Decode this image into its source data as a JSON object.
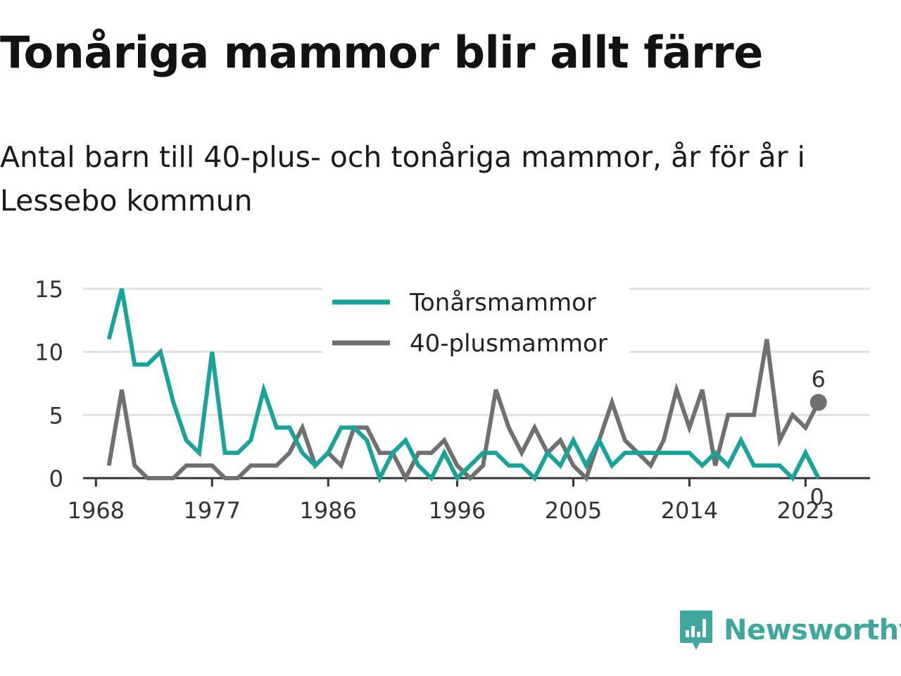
{
  "title": "Tonåriga mammor blir allt färre",
  "subtitle": "Antal barn till 40-plus- och tonåriga mammor, år för år i Lessebo kommun",
  "brand": {
    "name": "Newsworthy"
  },
  "colors": {
    "teal": "#1aa398",
    "gray": "#707070",
    "grid": "#e2e2e2",
    "axis": "#333333"
  },
  "chart_data": {
    "type": "line",
    "x": [
      1969,
      1970,
      1971,
      1972,
      1973,
      1974,
      1975,
      1976,
      1977,
      1978,
      1979,
      1980,
      1981,
      1982,
      1983,
      1984,
      1985,
      1986,
      1987,
      1988,
      1989,
      1990,
      1991,
      1992,
      1993,
      1994,
      1995,
      1996,
      1997,
      1998,
      1999,
      2000,
      2001,
      2002,
      2003,
      2004,
      2005,
      2006,
      2007,
      2008,
      2009,
      2010,
      2011,
      2012,
      2013,
      2014,
      2015,
      2016,
      2017,
      2018,
      2019,
      2020,
      2021,
      2022,
      2023,
      2024
    ],
    "series": [
      {
        "name": "Tonårsmammor",
        "color": "#1aa398",
        "values": [
          11,
          15,
          9,
          9,
          10,
          6,
          3,
          2,
          10,
          2,
          2,
          3,
          7,
          4,
          4,
          2,
          1,
          2,
          4,
          4,
          3,
          0,
          2,
          3,
          1,
          0,
          2,
          0,
          1,
          2,
          2,
          1,
          1,
          0,
          2,
          1,
          3,
          1,
          3,
          1,
          2,
          2,
          2,
          2,
          2,
          2,
          1,
          2,
          1,
          3,
          1,
          1,
          1,
          0,
          2,
          0
        ]
      },
      {
        "name": "40-plusmammor",
        "color": "#707070",
        "values": [
          1,
          7,
          1,
          0,
          0,
          0,
          1,
          1,
          1,
          0,
          0,
          1,
          1,
          1,
          2,
          4,
          1,
          2,
          1,
          4,
          4,
          2,
          2,
          0,
          2,
          2,
          3,
          1,
          0,
          1,
          7,
          4,
          2,
          4,
          2,
          3,
          1,
          0,
          3,
          6,
          3,
          2,
          1,
          3,
          7,
          4,
          7,
          1,
          5,
          5,
          5,
          11,
          3,
          5,
          4,
          6
        ]
      }
    ],
    "xticks": [
      "1968",
      "1977",
      "1986",
      "1996",
      "2005",
      "2014",
      "2023"
    ],
    "xtick_values": [
      1968,
      1977,
      1986,
      1996,
      2005,
      2014,
      2023
    ],
    "yticks": [
      "0",
      "5",
      "10",
      "15"
    ],
    "ytick_values": [
      0,
      5,
      10,
      15
    ],
    "xlim": [
      1967,
      2028
    ],
    "ylim": [
      0,
      15
    ],
    "end_labels": [
      "0",
      "6"
    ],
    "legend": {
      "position": "top-center"
    },
    "grid": true
  }
}
